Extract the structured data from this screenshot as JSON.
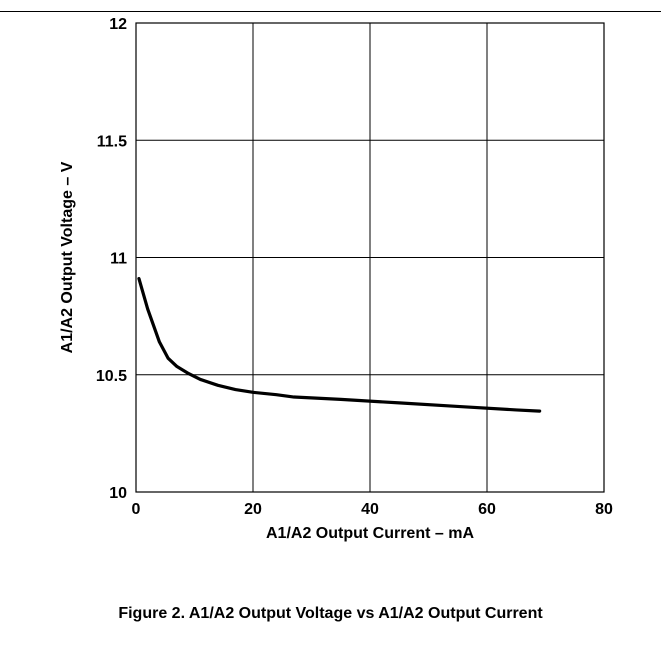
{
  "chart_data": {
    "type": "line",
    "title": "",
    "xlabel": "A1/A2 Output Current – mA",
    "ylabel": "A1/A2 Output Voltage – V",
    "xlim": [
      0,
      80
    ],
    "ylim": [
      10,
      12
    ],
    "xticks": [
      0,
      20,
      40,
      60,
      80
    ],
    "yticks": [
      10,
      10.5,
      11,
      11.5,
      12
    ],
    "ytick_labels": [
      "10",
      "10.5",
      "11",
      "11.5",
      "12"
    ],
    "xtick_labels": [
      "0",
      "20",
      "40",
      "60",
      "80"
    ],
    "grid": true,
    "series": [
      {
        "color": "#000000",
        "x": [
          0.5,
          2,
          4,
          5.5,
          7,
          9,
          11,
          14,
          17,
          20,
          24,
          27,
          35,
          45,
          55,
          65,
          69
        ],
        "y": [
          10.91,
          10.78,
          10.64,
          10.57,
          10.535,
          10.505,
          10.48,
          10.455,
          10.437,
          10.425,
          10.415,
          10.405,
          10.395,
          10.38,
          10.365,
          10.35,
          10.345
        ]
      }
    ]
  },
  "caption": "Figure 2. A1/A2 Output Voltage vs A1/A2 Output Current"
}
